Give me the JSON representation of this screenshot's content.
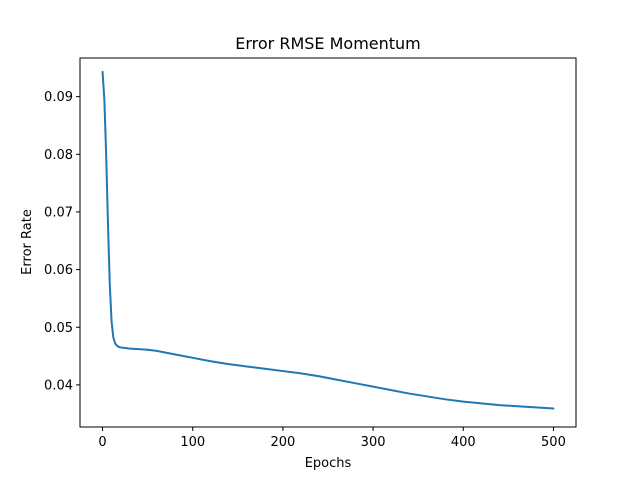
{
  "chart_data": {
    "type": "line",
    "title": "Error RMSE Momentum",
    "xlabel": "Epochs",
    "ylabel": "Error Rate",
    "xlim": [
      -25,
      525
    ],
    "ylim": [
      0.0327,
      0.0967
    ],
    "xticks": [
      0,
      100,
      200,
      300,
      400,
      500
    ],
    "yticks": [
      0.04,
      0.05,
      0.06,
      0.07,
      0.08,
      0.09
    ],
    "ytick_labels": [
      "0.04",
      "0.05",
      "0.06",
      "0.07",
      "0.08",
      "0.09"
    ],
    "grid": false,
    "series": [
      {
        "color": "#1f77b4",
        "x": [
          0,
          2,
          4,
          6,
          8,
          10,
          12,
          14,
          16,
          18,
          20,
          25,
          30,
          40,
          50,
          60,
          70,
          80,
          100,
          120,
          140,
          160,
          180,
          200,
          220,
          240,
          260,
          280,
          300,
          320,
          340,
          360,
          380,
          400,
          420,
          440,
          460,
          480,
          500
        ],
        "y": [
          0.0943,
          0.0895,
          0.08,
          0.068,
          0.0575,
          0.051,
          0.0482,
          0.0472,
          0.0468,
          0.0466,
          0.0465,
          0.0464,
          0.0463,
          0.0462,
          0.0461,
          0.0459,
          0.0456,
          0.0453,
          0.0447,
          0.0441,
          0.0436,
          0.0432,
          0.0428,
          0.0424,
          0.042,
          0.0415,
          0.0409,
          0.0403,
          0.0397,
          0.0391,
          0.0385,
          0.038,
          0.0375,
          0.0371,
          0.0368,
          0.0365,
          0.0363,
          0.0361,
          0.0359
        ]
      }
    ]
  }
}
